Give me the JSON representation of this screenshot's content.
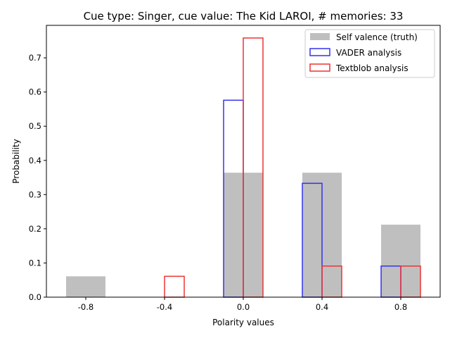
{
  "chart_data": {
    "type": "bar",
    "title": "Cue type: Singer, cue value: The Kid LAROI, # memories: 33",
    "xlabel": "Polarity values",
    "ylabel": "Probability",
    "categories": [
      -0.8,
      -0.4,
      0.0,
      0.4,
      0.8
    ],
    "x_tick_labels": [
      "-0.8",
      "-0.4",
      "0.0",
      "0.4",
      "0.8"
    ],
    "y_ticks": [
      0.0,
      0.1,
      0.2,
      0.3,
      0.4,
      0.5,
      0.6,
      0.7
    ],
    "y_tick_labels": [
      "0.0",
      "0.1",
      "0.2",
      "0.3",
      "0.4",
      "0.5",
      "0.6",
      "0.7"
    ],
    "xlim": [
      -1.0,
      1.0
    ],
    "ylim": [
      0,
      0.795
    ],
    "grid": false,
    "legend_position": "top-right",
    "series": [
      {
        "name": "Self valence (truth)",
        "values": [
          0.061,
          0.0,
          0.364,
          0.364,
          0.212
        ],
        "color": "#bfbfbf",
        "style": "filled"
      },
      {
        "name": "VADER analysis",
        "values": [
          0.0,
          0.0,
          0.576,
          0.333,
          0.091
        ],
        "color": "#3333ee",
        "style": "outline"
      },
      {
        "name": "Textblob analysis",
        "values": [
          0.0,
          0.061,
          0.758,
          0.091,
          0.091
        ],
        "color": "#ee3333",
        "style": "outline"
      }
    ]
  }
}
